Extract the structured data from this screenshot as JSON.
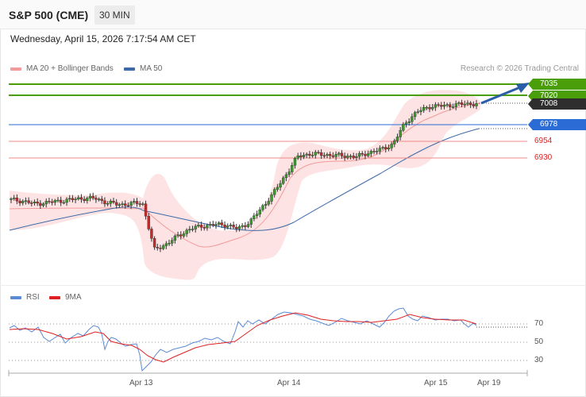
{
  "header": {
    "symbol": "S&P 500 (CME)",
    "timeframe": "30 MIN"
  },
  "date_text": "Wednesday, April 15, 2026 7:17:54 AM CET",
  "legend": {
    "ma20": "MA 20 + Bollinger Bands",
    "ma50": "MA 50"
  },
  "credit": "Research © 2026 Trading Central",
  "colors": {
    "green": "#4a9e0a",
    "blue": "#2a6bd6",
    "red": "#e02020",
    "band": "#fde3e3",
    "ma20": "#f39a9a",
    "ma50": "#3c6aa8",
    "dark": "#2e2e2e",
    "rsi": "#5b8ad6",
    "rsi_ma": "#e02020"
  },
  "levels": {
    "r2": {
      "label": "7035",
      "value": 7035
    },
    "r1": {
      "label": "7020",
      "value": 7020
    },
    "last": {
      "label": "7008",
      "value": 7008
    },
    "pivot": {
      "label": "6978",
      "value": 6978
    },
    "s1": {
      "label": "6954",
      "value": 6954
    },
    "s2": {
      "label": "6930",
      "value": 6930
    }
  },
  "rsi_legend": {
    "rsi": "RSI",
    "ma": "9MA"
  },
  "rsi_levels": [
    {
      "label": "70",
      "value": 70
    },
    {
      "label": "50",
      "value": 50
    },
    {
      "label": "30",
      "value": 30
    }
  ],
  "x_labels": {
    "d1": "Apr 13",
    "d2": "Apr 14",
    "d3": "Apr 15",
    "d4": "Apr 19"
  },
  "chart_data": [
    {
      "type": "line",
      "title": "",
      "series": [
        {
          "name": "MA 20 + Bollinger Bands"
        },
        {
          "name": "MA 50"
        }
      ],
      "x": [
        "Apr 13",
        "Apr 14",
        "Apr 15",
        "Apr 19"
      ],
      "close_approx": [
        6870,
        6868,
        6864,
        6866,
        6868,
        6870,
        6872,
        6872,
        6866,
        6863,
        6864,
        6866,
        6798,
        6806,
        6818,
        6828,
        6832,
        6834,
        6834,
        6828,
        6838,
        6858,
        6880,
        6905,
        6932,
        6936,
        6935,
        6934,
        6933,
        6932,
        6938,
        6942,
        6950,
        6980,
        6996,
        7004,
        7005,
        7006,
        7008,
        7008
      ],
      "levels": [
        7035,
        7020,
        7008,
        6978,
        6954,
        6930
      ]
    },
    {
      "type": "line",
      "title": "",
      "series": [
        {
          "name": "RSI"
        },
        {
          "name": "9MA"
        }
      ],
      "ylim": [
        20,
        80
      ],
      "levels": [
        70,
        50,
        30
      ],
      "rsi_approx": [
        67,
        66,
        63,
        58,
        55,
        57,
        60,
        62,
        55,
        52,
        47,
        23,
        27,
        33,
        39,
        45,
        48,
        50,
        51,
        52,
        62,
        70,
        75,
        78,
        79,
        76,
        74,
        73,
        73,
        72,
        72,
        71,
        71,
        70,
        76,
        78,
        74,
        72,
        70,
        67
      ]
    }
  ]
}
